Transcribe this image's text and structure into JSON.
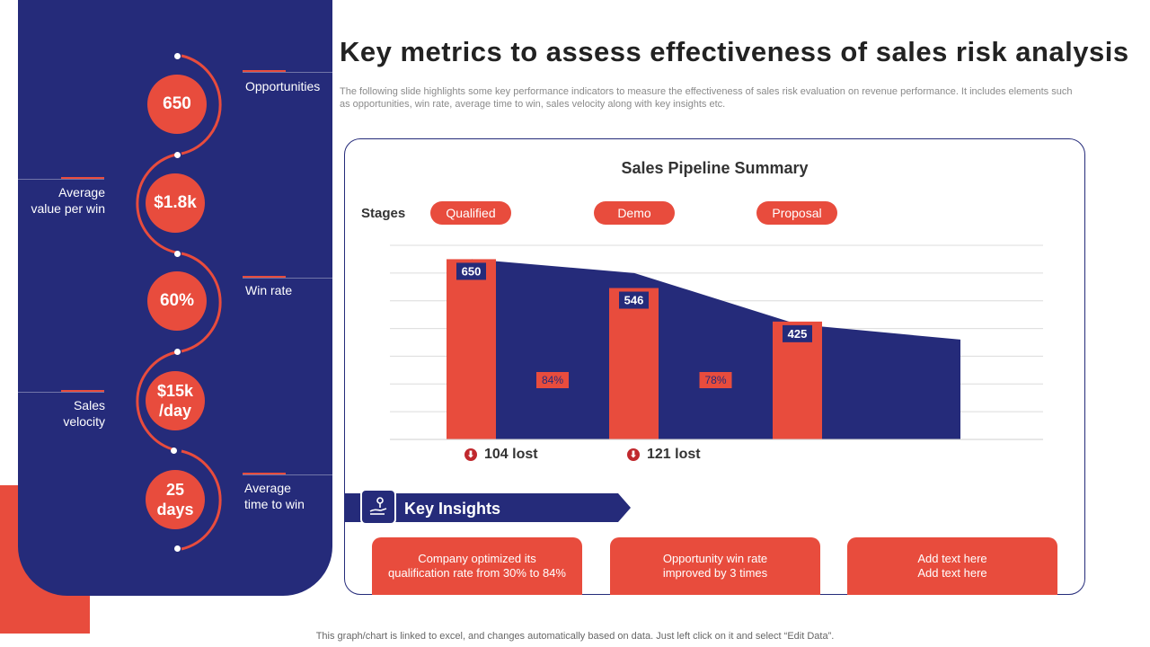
{
  "title": "Key metrics to assess effectiveness of sales risk analysis",
  "subtitle": "The following slide highlights some key performance indicators to measure the effectiveness of sales risk evaluation on revenue performance. It includes elements such as opportunities, win rate, average time to win, sales velocity along with key insights etc.",
  "metrics": [
    {
      "value_line1": "650",
      "value_line2": "",
      "label_line1": "Opportunities",
      "label_line2": ""
    },
    {
      "value_line1": "$1.8k",
      "value_line2": "",
      "label_line1": "Average",
      "label_line2": "value per win"
    },
    {
      "value_line1": "60%",
      "value_line2": "",
      "label_line1": "Win rate",
      "label_line2": ""
    },
    {
      "value_line1": "$15k",
      "value_line2": "/day",
      "label_line1": "Sales",
      "label_line2": "velocity"
    },
    {
      "value_line1": "25",
      "value_line2": "days",
      "label_line1": "Average",
      "label_line2": "time to win"
    }
  ],
  "chart_data": {
    "type": "bar",
    "title": "Sales Pipeline Summary",
    "stages_label": "Stages",
    "categories": [
      "Qualified",
      "Demo",
      "Proposal"
    ],
    "values": [
      650,
      546,
      425
    ],
    "value_labels": [
      "650",
      "546",
      "425"
    ],
    "conversion_rates": [
      "84%",
      "78%"
    ],
    "lost": [
      "104 lost",
      "121 lost"
    ],
    "area_values": [
      650,
      600,
      415,
      360
    ],
    "ylim": [
      0,
      700
    ],
    "grid": true,
    "colors": {
      "bar": "#e84c3d",
      "area": "#252b7a",
      "label_bg": "#252b7a"
    }
  },
  "insights": {
    "heading": "Key Insights",
    "cards": [
      {
        "line1": "Company optimized its",
        "line2": "qualification rate from 30% to 84%"
      },
      {
        "line1": "Opportunity win rate",
        "line2": "improved  by 3 times"
      },
      {
        "line1": "Add text here",
        "line2": "Add text here"
      }
    ]
  },
  "footer": "This graph/chart is linked to excel,  and changes automatically based on data. Just left click on it and select “Edit Data”.",
  "colors": {
    "navy": "#252b7a",
    "accent": "#e84c3d"
  }
}
